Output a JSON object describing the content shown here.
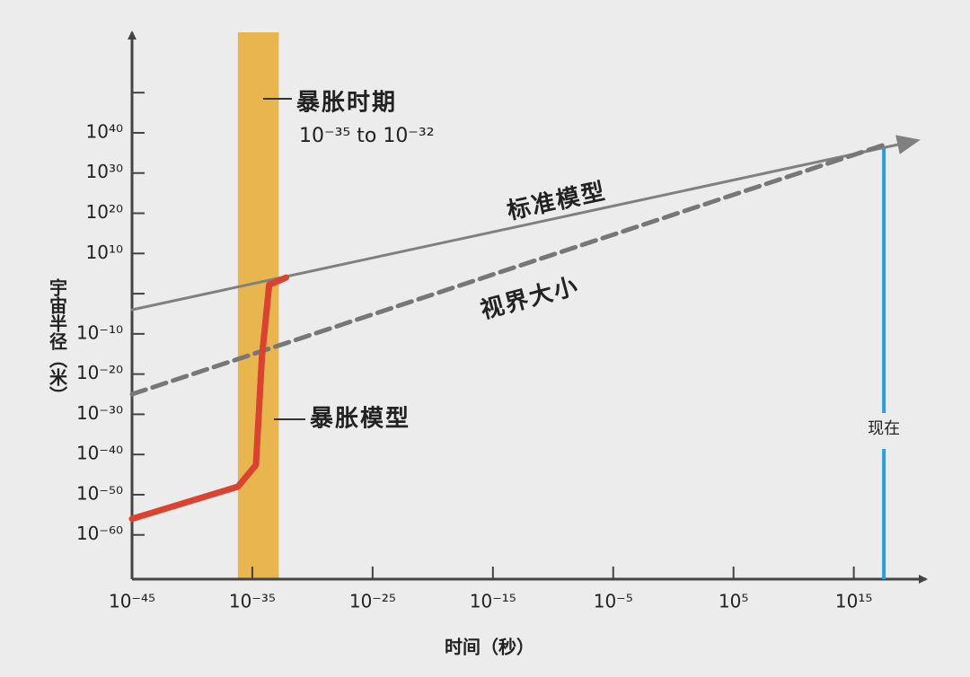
{
  "chart_data": {
    "type": "line",
    "x_label": "时间（秒）",
    "y_label": "宇宙半径（米）",
    "xlim": [
      -45,
      21
    ],
    "ylim": [
      -71,
      65
    ],
    "xticks": [
      {
        "value": -45,
        "label": "10⁻⁴⁵"
      },
      {
        "value": -35,
        "label": "10⁻³⁵"
      },
      {
        "value": -25,
        "label": "10⁻²⁵"
      },
      {
        "value": -15,
        "label": "10⁻¹⁵"
      },
      {
        "value": -5,
        "label": "10⁻⁵"
      },
      {
        "value": 5,
        "label": "10⁵"
      },
      {
        "value": 15,
        "label": "10¹⁵"
      }
    ],
    "yticks": [
      {
        "value": 40,
        "label": "10⁴⁰"
      },
      {
        "value": 30,
        "label": "10³⁰"
      },
      {
        "value": 20,
        "label": "10²⁰"
      },
      {
        "value": 10,
        "label": "10¹⁰"
      },
      {
        "value": -10,
        "label": "10⁻¹⁰"
      },
      {
        "value": -20,
        "label": "10⁻²⁰"
      },
      {
        "value": -30,
        "label": "10⁻³⁰"
      },
      {
        "value": -40,
        "label": "10⁻⁴⁰"
      },
      {
        "value": -50,
        "label": "10⁻⁵⁰"
      },
      {
        "value": -60,
        "label": "10⁻⁶⁰"
      }
    ],
    "yminorticks": [
      50,
      0
    ],
    "series": [
      {
        "name": "标准模型",
        "color": "#808080",
        "dashed": false,
        "x": [
          -45,
          20.1
        ],
        "values": [
          -4,
          38
        ]
      },
      {
        "name": "视界大小",
        "color": "#777777",
        "dashed": true,
        "x": [
          -45,
          17.5
        ],
        "values": [
          -25,
          37
        ]
      },
      {
        "name": "暴胀模型",
        "color": "#d9432f",
        "dashed": false,
        "x": [
          -45,
          -36.2,
          -34.7,
          -34.2,
          -33.6,
          -32.2
        ],
        "values": [
          -56,
          -48,
          -42.6,
          -15.7,
          2.2,
          4
        ]
      }
    ],
    "band": {
      "label": "暴胀时期",
      "sublabel": "10⁻³⁵ to 10⁻³²",
      "x": [
        -36.2,
        -32.8
      ],
      "color": "#e8b54f"
    },
    "now": {
      "label": "现在",
      "x": 17.5,
      "color": "#2a9fd8"
    }
  }
}
